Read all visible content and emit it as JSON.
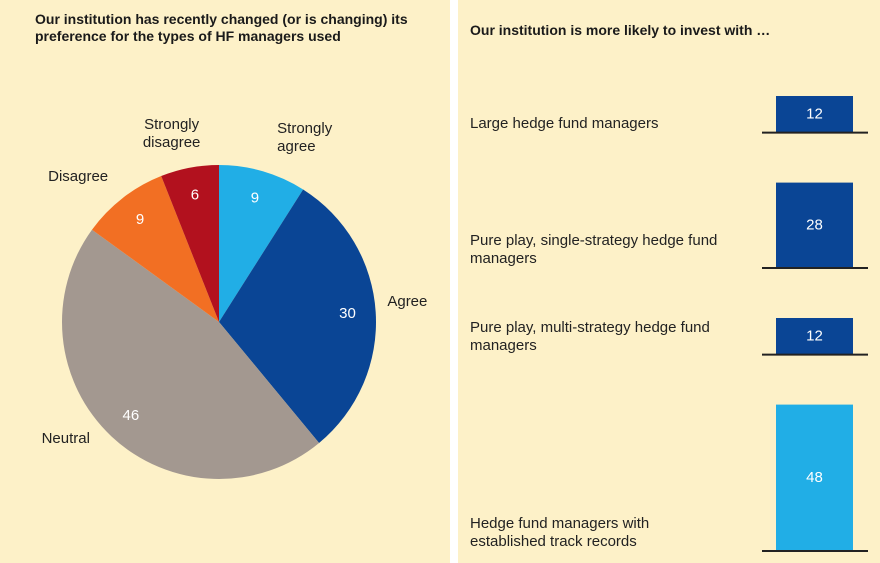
{
  "chart_data": [
    {
      "type": "pie",
      "title": "Our institution has recently changed (or is changing) its preference for the types of HF managers used",
      "categories": [
        "Strongly agree",
        "Agree",
        "Neutral",
        "Disagree",
        "Strongly disagree"
      ],
      "values": [
        9,
        30,
        46,
        9,
        6
      ],
      "colors": [
        "#21aee6",
        "#0a4595",
        "#a39890",
        "#f26f23",
        "#b2111e"
      ]
    },
    {
      "type": "bar",
      "title": "Our institution is more likely to invest with …",
      "categories": [
        "Large hedge fund managers",
        "Pure play, single-strategy hedge fund managers",
        "Pure play, multi-strategy hedge fund managers",
        "Hedge fund managers with established track records"
      ],
      "values": [
        12,
        28,
        12,
        48
      ],
      "colors": [
        "#0a4595",
        "#0a4595",
        "#0a4595",
        "#21aee6"
      ]
    }
  ]
}
